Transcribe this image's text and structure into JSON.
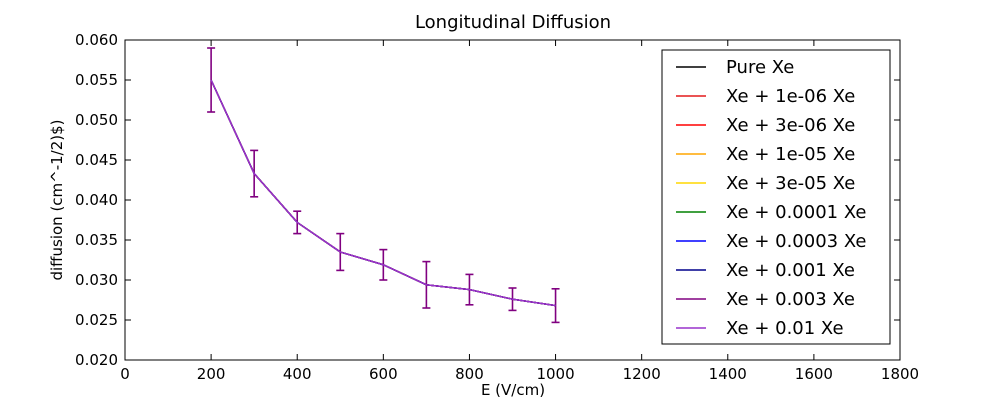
{
  "chart_data": {
    "type": "line",
    "title": "Longitudinal Diffusion",
    "xlabel": "E (V/cm)",
    "ylabel": "diffusion (cm^-1/2)$)",
    "xlim": [
      0,
      1800
    ],
    "ylim": [
      0.02,
      0.06
    ],
    "xticks": [
      "0",
      "200",
      "400",
      "600",
      "800",
      "1000",
      "1200",
      "1400",
      "1600",
      "1800"
    ],
    "yticks": [
      "0.020",
      "0.025",
      "0.030",
      "0.035",
      "0.040",
      "0.045",
      "0.050",
      "0.055",
      "0.060"
    ],
    "grid": false,
    "legend_position": "top-right",
    "x": [
      200,
      300,
      400,
      500,
      600,
      700,
      800,
      900,
      1000
    ],
    "series": [
      {
        "name": "Pure Xe",
        "color": "#000000",
        "values": [
          0.055,
          0.0433,
          0.0372,
          0.0335,
          0.0319,
          0.0294,
          0.0288,
          0.0276,
          0.0268
        ]
      },
      {
        "name": "Xe + 1e-06 Xe",
        "color": "#e41a1c",
        "values": [
          0.055,
          0.0433,
          0.0372,
          0.0335,
          0.0319,
          0.0294,
          0.0288,
          0.0276,
          0.0268
        ]
      },
      {
        "name": "Xe + 3e-06 Xe",
        "color": "#ff0000",
        "values": [
          0.055,
          0.0433,
          0.0372,
          0.0335,
          0.0319,
          0.0294,
          0.0288,
          0.0276,
          0.0268
        ]
      },
      {
        "name": "Xe + 1e-05 Xe",
        "color": "#ffa500",
        "values": [
          0.055,
          0.0433,
          0.0372,
          0.0335,
          0.0319,
          0.0294,
          0.0288,
          0.0276,
          0.0268
        ]
      },
      {
        "name": "Xe + 3e-05 Xe",
        "color": "#ffd700",
        "values": [
          0.055,
          0.0433,
          0.0372,
          0.0335,
          0.0319,
          0.0294,
          0.0288,
          0.0276,
          0.0268
        ]
      },
      {
        "name": "Xe + 0.0001 Xe",
        "color": "#008000",
        "values": [
          0.055,
          0.0433,
          0.0372,
          0.0335,
          0.0319,
          0.0294,
          0.0288,
          0.0276,
          0.0268
        ]
      },
      {
        "name": "Xe + 0.0003 Xe",
        "color": "#0000ff",
        "values": [
          0.055,
          0.0433,
          0.0372,
          0.0335,
          0.0319,
          0.0294,
          0.0288,
          0.0276,
          0.0268
        ]
      },
      {
        "name": "Xe + 0.001 Xe",
        "color": "#00008b",
        "values": [
          0.055,
          0.0433,
          0.0372,
          0.0335,
          0.0319,
          0.0294,
          0.0288,
          0.0276,
          0.0268
        ]
      },
      {
        "name": "Xe + 0.003 Xe",
        "color": "#800080",
        "values": [
          0.055,
          0.0433,
          0.0372,
          0.0335,
          0.0319,
          0.0294,
          0.0288,
          0.0276,
          0.0268
        ]
      },
      {
        "name": "Xe + 0.01 Xe",
        "color": "#9932cc",
        "values": [
          0.055,
          0.0433,
          0.0372,
          0.0335,
          0.0319,
          0.0294,
          0.0288,
          0.0276,
          0.0268
        ]
      }
    ],
    "error_bars": {
      "color": "#800080",
      "y_err": [
        0.004,
        0.0029,
        0.0014,
        0.0023,
        0.0019,
        0.0029,
        0.0019,
        0.0014,
        0.0021
      ]
    }
  }
}
